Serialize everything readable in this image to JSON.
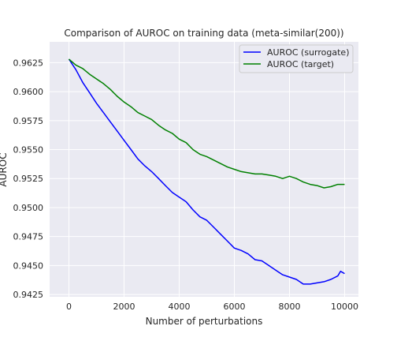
{
  "chart_data": {
    "type": "line",
    "title": "Comparison of AUROC on training data (meta-similar(200))",
    "xlabel": "Number of perturbations",
    "ylabel": "AUROC",
    "xlim": [
      -700,
      10500
    ],
    "ylim": [
      0.9423,
      0.9643
    ],
    "xticks": [
      0,
      2000,
      4000,
      6000,
      8000,
      10000
    ],
    "xtick_labels": [
      "0",
      "2000",
      "4000",
      "6000",
      "8000",
      "10000"
    ],
    "yticks": [
      0.9425,
      0.945,
      0.9475,
      0.95,
      0.9525,
      0.955,
      0.9575,
      0.96,
      0.9625
    ],
    "ytick_labels": [
      "0.9425",
      "0.9450",
      "0.9475",
      "0.9500",
      "0.9525",
      "0.9550",
      "0.9575",
      "0.9600",
      "0.9625"
    ],
    "grid": true,
    "legend_position": "top-right",
    "series": [
      {
        "name": "AUROC (surrogate)",
        "color": "#0000ff",
        "x": [
          0,
          250,
          500,
          750,
          1000,
          1250,
          1500,
          1750,
          2000,
          2250,
          2500,
          2750,
          3000,
          3250,
          3500,
          3750,
          4000,
          4250,
          4500,
          4750,
          5000,
          5250,
          5500,
          5750,
          6000,
          6250,
          6500,
          6750,
          7000,
          7250,
          7500,
          7750,
          8000,
          8250,
          8500,
          8750,
          9000,
          9250,
          9500,
          9750,
          9850,
          10000
        ],
        "y": [
          0.9628,
          0.9619,
          0.9608,
          0.9599,
          0.959,
          0.9582,
          0.9574,
          0.9566,
          0.9558,
          0.955,
          0.9542,
          0.9536,
          0.9531,
          0.9525,
          0.9519,
          0.9513,
          0.9509,
          0.9505,
          0.9498,
          0.9492,
          0.9489,
          0.9483,
          0.9477,
          0.9471,
          0.9465,
          0.9463,
          0.946,
          0.9455,
          0.9454,
          0.945,
          0.9446,
          0.9442,
          0.944,
          0.9438,
          0.9434,
          0.9434,
          0.9435,
          0.9436,
          0.9438,
          0.9441,
          0.9445,
          0.9443
        ]
      },
      {
        "name": "AUROC (target)",
        "color": "#008000",
        "x": [
          0,
          250,
          500,
          750,
          1000,
          1250,
          1500,
          1750,
          2000,
          2250,
          2500,
          2750,
          3000,
          3250,
          3500,
          3750,
          4000,
          4250,
          4500,
          4750,
          5000,
          5250,
          5500,
          5750,
          6000,
          6250,
          6500,
          6750,
          7000,
          7250,
          7500,
          7750,
          8000,
          8250,
          8500,
          8750,
          9000,
          9250,
          9500,
          9750,
          10000
        ],
        "y": [
          0.9628,
          0.9623,
          0.962,
          0.9615,
          0.9611,
          0.9607,
          0.9602,
          0.9596,
          0.9591,
          0.9587,
          0.9582,
          0.9579,
          0.9576,
          0.9571,
          0.9567,
          0.9564,
          0.9559,
          0.9556,
          0.955,
          0.9546,
          0.9544,
          0.9541,
          0.9538,
          0.9535,
          0.9533,
          0.9531,
          0.953,
          0.9529,
          0.9529,
          0.9528,
          0.9527,
          0.9525,
          0.9527,
          0.9525,
          0.9522,
          0.952,
          0.9519,
          0.9517,
          0.9518,
          0.952,
          0.952
        ]
      }
    ]
  }
}
